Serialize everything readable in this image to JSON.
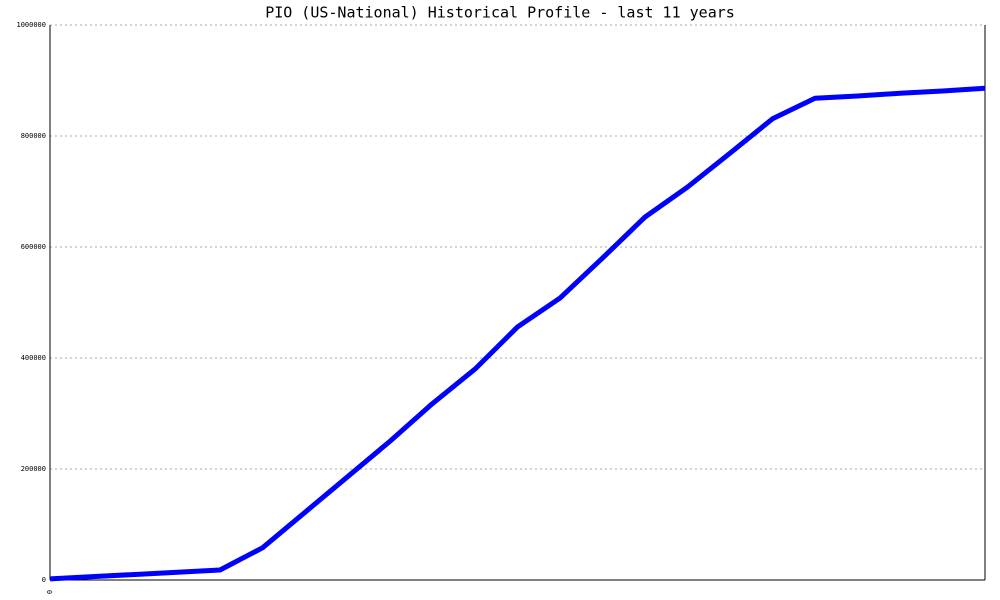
{
  "chart_data": {
    "type": "line",
    "title": "PIO (US-National) Historical Profile - last 11 years",
    "categories": [
      "0",
      null,
      null,
      null,
      null,
      null,
      null,
      null,
      null,
      null,
      null,
      null,
      null,
      null,
      null,
      null,
      null,
      null,
      null,
      null,
      null,
      null,
      null
    ],
    "series": [
      {
        "color": "#0000ff",
        "values": [
          2000,
          6000,
          10000,
          14000,
          18000,
          58000,
          122000,
          186000,
          250000,
          318000,
          380000,
          456000,
          508000,
          580000,
          654000,
          708000,
          769000,
          831000,
          868000,
          872000,
          877000,
          881000,
          886000
        ]
      }
    ],
    "ylim": [
      0,
      1000000
    ],
    "yticks": [
      0,
      200000,
      400000,
      600000,
      800000,
      1000000
    ],
    "grid": true
  }
}
